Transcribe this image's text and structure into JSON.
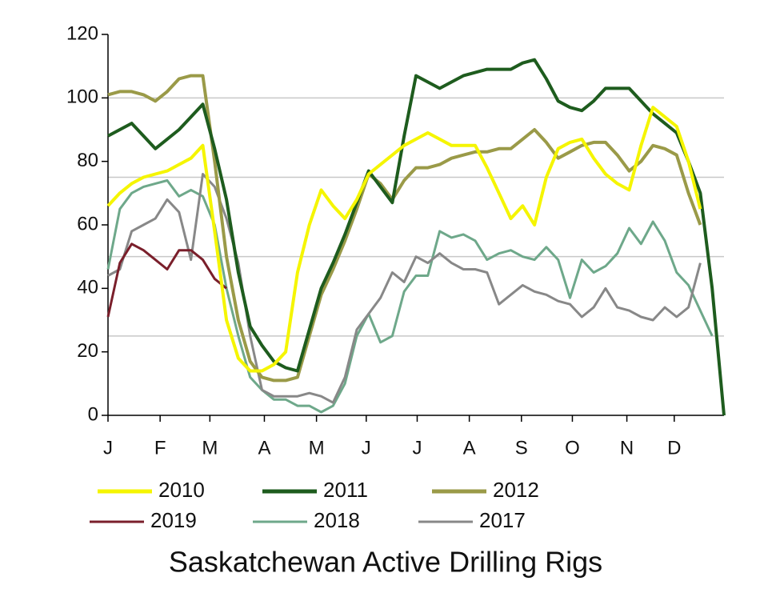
{
  "chart_data": {
    "type": "line",
    "title": "Saskatchewan Active Drilling Rigs",
    "x": [
      0,
      1,
      2,
      3,
      4,
      5,
      6,
      7,
      8,
      9,
      10,
      11,
      12,
      13,
      14,
      15,
      16,
      17,
      18,
      19,
      20,
      21,
      22,
      23,
      24,
      25,
      26,
      27,
      28,
      29,
      30,
      31,
      32,
      33,
      34,
      35,
      36,
      37,
      38,
      39,
      40,
      41,
      42,
      43,
      44,
      45,
      46,
      47,
      48,
      49,
      50,
      51,
      52
    ],
    "xlim": [
      0,
      52
    ],
    "xticks": [
      {
        "value": 0,
        "label": "J"
      },
      {
        "value": 4.4,
        "label": "F"
      },
      {
        "value": 8.6,
        "label": "M"
      },
      {
        "value": 13.2,
        "label": "A"
      },
      {
        "value": 17.6,
        "label": "M"
      },
      {
        "value": 21.8,
        "label": "J"
      },
      {
        "value": 26.1,
        "label": "J"
      },
      {
        "value": 30.5,
        "label": "A"
      },
      {
        "value": 34.9,
        "label": "S"
      },
      {
        "value": 39.2,
        "label": "O"
      },
      {
        "value": 43.8,
        "label": "N"
      },
      {
        "value": 47.8,
        "label": "D"
      }
    ],
    "ylim": [
      0,
      120
    ],
    "yticks": [
      0,
      20,
      40,
      60,
      80,
      100,
      120
    ],
    "grid_lines": [
      25,
      50,
      75,
      100
    ],
    "series": [
      {
        "name": "2010",
        "color": "#f5f500",
        "values": [
          66,
          70,
          73,
          75,
          76,
          77,
          79,
          81,
          85,
          58,
          30,
          18,
          14,
          14,
          16,
          20,
          45,
          60,
          71,
          66,
          62,
          68,
          76,
          79,
          82,
          85,
          87,
          89,
          87,
          85,
          85,
          85,
          78,
          70,
          62,
          66,
          60,
          75,
          84,
          86,
          87,
          81,
          76,
          73,
          71,
          85,
          97,
          94,
          91,
          80,
          65,
          null,
          null
        ]
      },
      {
        "name": "2011",
        "color": "#1e5c1e",
        "values": [
          88,
          90,
          92,
          88,
          84,
          87,
          90,
          94,
          98,
          84,
          68,
          45,
          28,
          22,
          17,
          15,
          14,
          27,
          40,
          48,
          57,
          67,
          77,
          72,
          67,
          88,
          107,
          105,
          103,
          105,
          107,
          108,
          109,
          109,
          109,
          111,
          112,
          106,
          99,
          97,
          96,
          99,
          103,
          103,
          103,
          99,
          95,
          92,
          89,
          80,
          70,
          40,
          0
        ]
      },
      {
        "name": "2012",
        "color": "#9a9a48",
        "values": [
          101,
          102,
          102,
          101,
          99,
          102,
          106,
          107,
          107,
          80,
          50,
          30,
          17,
          12,
          11,
          11,
          12,
          25,
          38,
          46,
          55,
          65,
          76,
          73,
          68,
          74,
          78,
          78,
          79,
          81,
          82,
          83,
          83,
          84,
          84,
          87,
          90,
          86,
          81,
          83,
          85,
          86,
          86,
          82,
          77,
          80,
          85,
          84,
          82,
          70,
          60,
          null,
          null
        ]
      },
      {
        "name": "2019",
        "color": "#7a1f2b",
        "values": [
          31,
          48,
          54,
          52,
          49,
          46,
          52,
          52,
          49,
          43,
          40,
          null,
          null,
          null,
          null,
          null,
          null,
          null,
          null,
          null,
          null,
          null,
          null,
          null,
          null,
          null,
          null,
          null,
          null,
          null,
          null,
          null,
          null,
          null,
          null,
          null,
          null,
          null,
          null,
          null,
          null,
          null,
          null,
          null,
          null,
          null,
          null,
          null,
          null,
          null,
          null,
          null,
          null
        ]
      },
      {
        "name": "2018",
        "color": "#6ea88a",
        "values": [
          46,
          65,
          70,
          72,
          73,
          74,
          69,
          71,
          69,
          60,
          40,
          25,
          12,
          8,
          5,
          5,
          3,
          3,
          1,
          3,
          10,
          25,
          32,
          23,
          25,
          39,
          44,
          44,
          58,
          56,
          57,
          55,
          49,
          51,
          52,
          50,
          49,
          53,
          49,
          37,
          49,
          45,
          47,
          51,
          59,
          54,
          61,
          55,
          45,
          41,
          33,
          25,
          null
        ]
      },
      {
        "name": "2017",
        "color": "#888888",
        "values": [
          44,
          46,
          58,
          60,
          62,
          68,
          64,
          49,
          76,
          72,
          62,
          48,
          25,
          8,
          6,
          6,
          6,
          7,
          6,
          4,
          12,
          27,
          32,
          37,
          45,
          42,
          50,
          48,
          51,
          48,
          46,
          46,
          45,
          35,
          38,
          41,
          39,
          38,
          36,
          35,
          31,
          34,
          40,
          34,
          33,
          31,
          30,
          34,
          31,
          34,
          48,
          null,
          null
        ]
      }
    ]
  }
}
